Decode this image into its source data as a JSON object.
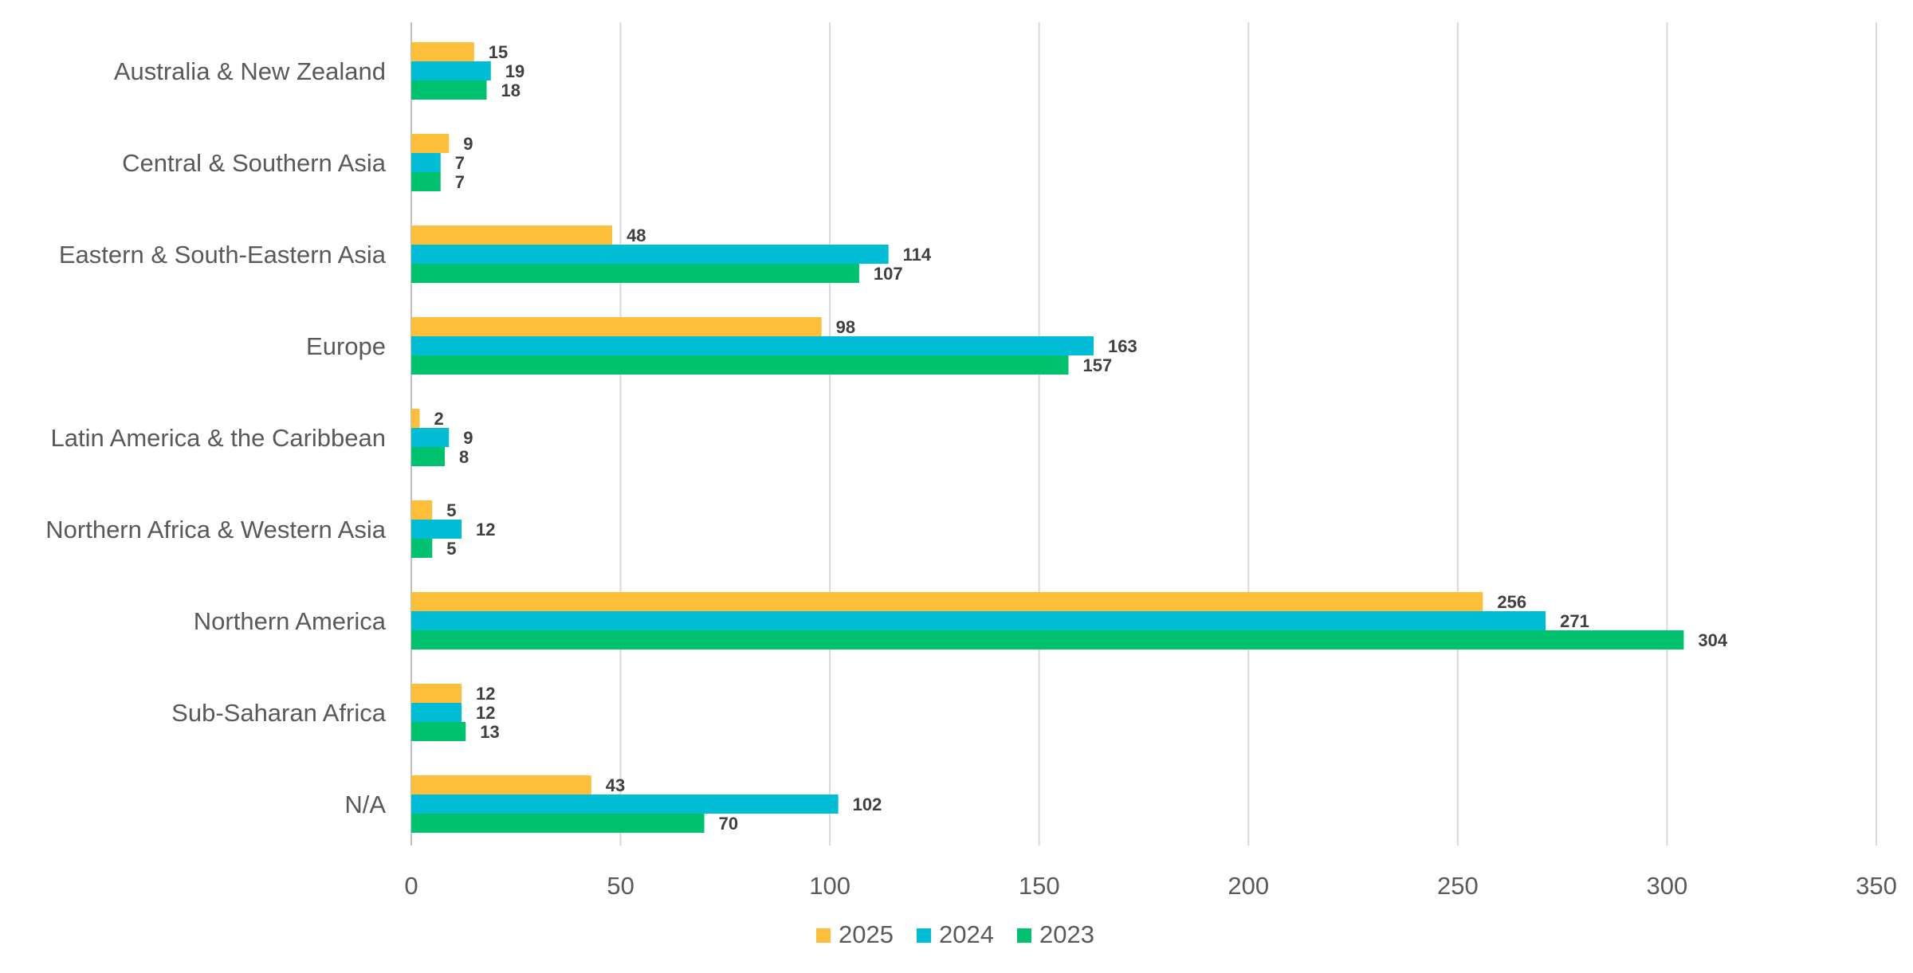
{
  "chart_data": {
    "type": "bar",
    "orientation": "horizontal",
    "title": "",
    "xlabel": "",
    "ylabel": "",
    "xlim": [
      0,
      350
    ],
    "ticks": [
      0,
      50,
      100,
      150,
      200,
      250,
      300,
      350
    ],
    "tick_labels": [
      "0",
      "50",
      "100",
      "150",
      "200",
      "250",
      "300",
      "350"
    ],
    "grid": true,
    "legend_position": "bottom",
    "categories": [
      "Australia & New Zealand",
      "Central & Southern Asia",
      "Eastern & South-Eastern Asia",
      "Europe",
      "Latin America & the Caribbean",
      "Northern Africa & Western Asia",
      "Northern America",
      "Sub-Saharan Africa",
      "N/A"
    ],
    "series": [
      {
        "name": "2025",
        "color": "#FDBE3A",
        "values": [
          15,
          9,
          48,
          98,
          2,
          5,
          256,
          12,
          43
        ]
      },
      {
        "name": "2024",
        "color": "#00BCD4",
        "values": [
          19,
          7,
          114,
          163,
          9,
          12,
          271,
          12,
          102
        ]
      },
      {
        "name": "2023",
        "color": "#00C16E",
        "values": [
          18,
          7,
          107,
          157,
          8,
          5,
          304,
          13,
          70
        ]
      }
    ]
  }
}
